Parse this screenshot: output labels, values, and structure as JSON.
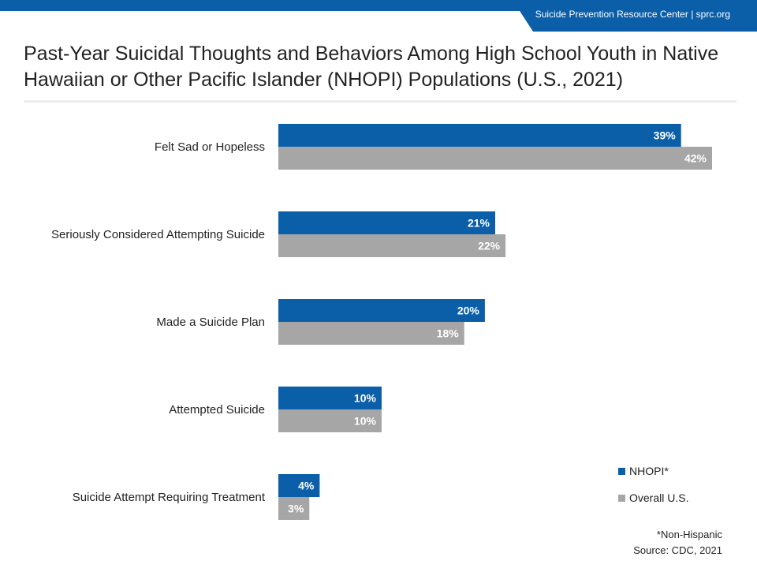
{
  "banner": {
    "text": "Suicide Prevention Resource Center  |  sprc.org"
  },
  "title": "Past-Year Suicidal Thoughts and Behaviors Among High School Youth in Native Hawaiian or Other Pacific Islander (NHOPI) Populations (U.S., 2021)",
  "colors": {
    "brand": "#0b5ea8",
    "nhopi": "#0b5ea8",
    "overall": "#a6a6a6"
  },
  "chart_data": {
    "type": "bar",
    "orientation": "horizontal",
    "categories": [
      "Felt Sad or Hopeless",
      "Seriously Considered Attempting Suicide",
      "Made a Suicide Plan",
      "Attempted Suicide",
      "Suicide Attempt Requiring Treatment"
    ],
    "series": [
      {
        "name": "NHOPI*",
        "values": [
          39,
          21,
          20,
          10,
          4
        ],
        "labels": [
          "39%",
          "21%",
          "20%",
          "10%",
          "4%"
        ],
        "color": "#0b5ea8"
      },
      {
        "name": "Overall U.S.",
        "values": [
          42,
          22,
          18,
          10,
          3
        ],
        "labels": [
          "42%",
          "22%",
          "18%",
          "10%",
          "3%"
        ],
        "color": "#a6a6a6"
      }
    ],
    "xlim": [
      0,
      42
    ],
    "grid": false,
    "legend_position": "bottom-right"
  },
  "footnotes": {
    "note": "*Non-Hispanic",
    "source": "Source: CDC, 2021"
  }
}
